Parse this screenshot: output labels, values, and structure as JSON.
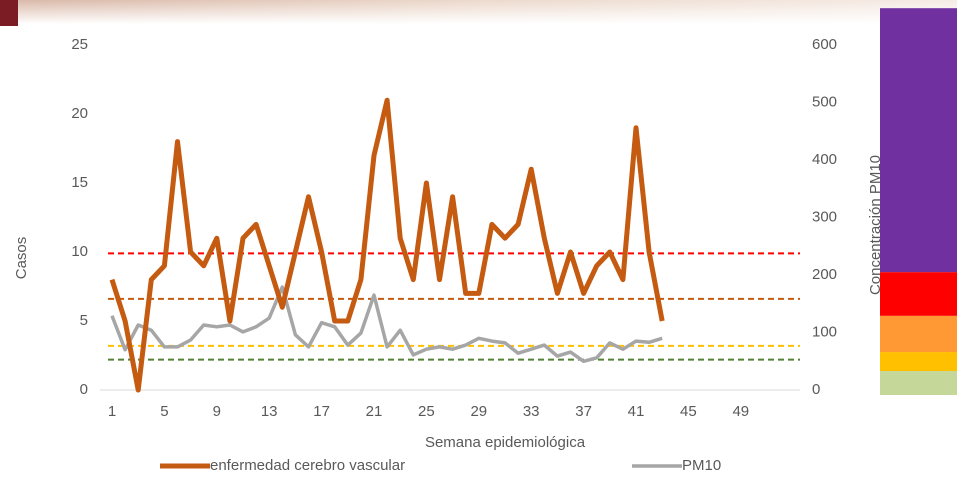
{
  "chart_data": {
    "type": "line",
    "x_label": "Semana epidemiológica",
    "y_label": "Casos",
    "y2_label": "Concentración PM10",
    "categories": [
      1,
      null,
      null,
      null,
      5,
      null,
      null,
      null,
      9,
      null,
      null,
      null,
      13,
      null,
      null,
      null,
      17,
      null,
      null,
      null,
      21,
      null,
      null,
      null,
      25,
      null,
      null,
      null,
      29,
      null,
      null,
      null,
      33,
      null,
      null,
      null,
      37,
      null,
      null,
      null,
      41,
      null,
      null,
      null,
      45,
      null,
      null,
      null,
      49,
      null,
      null,
      null
    ],
    "series": [
      {
        "name": "enfermedad cerebro vascular",
        "color": "#c55a11",
        "values": [
          8,
          5,
          0,
          8,
          9,
          18,
          10,
          9,
          11,
          5,
          11,
          12,
          9,
          6,
          10,
          14,
          10,
          5,
          5,
          8,
          17,
          21,
          11,
          8,
          15,
          8,
          14,
          7,
          7,
          12,
          11,
          12,
          16,
          11,
          7,
          10,
          7,
          9,
          10,
          8,
          19,
          10,
          5,
          null,
          null,
          null,
          null,
          null,
          null,
          null,
          null,
          null
        ]
      },
      {
        "name": "PM10",
        "color": "#a6a6a6",
        "axis": "y2",
        "values": [
          129,
          70,
          113,
          104,
          75,
          75,
          87,
          113,
          110,
          113,
          101,
          110,
          125,
          179,
          96,
          75,
          117,
          110,
          78,
          99,
          165,
          75,
          104,
          61,
          71,
          75,
          71,
          78,
          90,
          85,
          82,
          64,
          71,
          78,
          59,
          66,
          50,
          56,
          82,
          71,
          85,
          83,
          90,
          null,
          null,
          null,
          null,
          null,
          null,
          null,
          null,
          null
        ]
      }
    ],
    "ylim": [
      0,
      25
    ],
    "yticks": [
      0,
      5,
      10,
      15,
      20,
      25
    ],
    "y2lim": [
      0,
      600
    ],
    "y2ticks": [
      0,
      100,
      200,
      300,
      400,
      500,
      600
    ],
    "reference_lines": [
      {
        "value": 9.9,
        "color": "#ff0000"
      },
      {
        "value": 6.6,
        "color": "#c55a11"
      },
      {
        "value": 3.2,
        "color": "#ffc000"
      },
      {
        "value": 2.2,
        "color": "#548235"
      }
    ],
    "bands": [
      {
        "from": 0,
        "to": 33,
        "color": "#c5d89a"
      },
      {
        "from": 33,
        "to": 66,
        "color": "#ffc000"
      },
      {
        "from": 66,
        "to": 129,
        "color": "#ff9933"
      },
      {
        "from": 129,
        "to": 205,
        "color": "#ff0000"
      },
      {
        "from": 205,
        "to": 664,
        "color": "#7030a0"
      }
    ],
    "legend": "bottom"
  }
}
